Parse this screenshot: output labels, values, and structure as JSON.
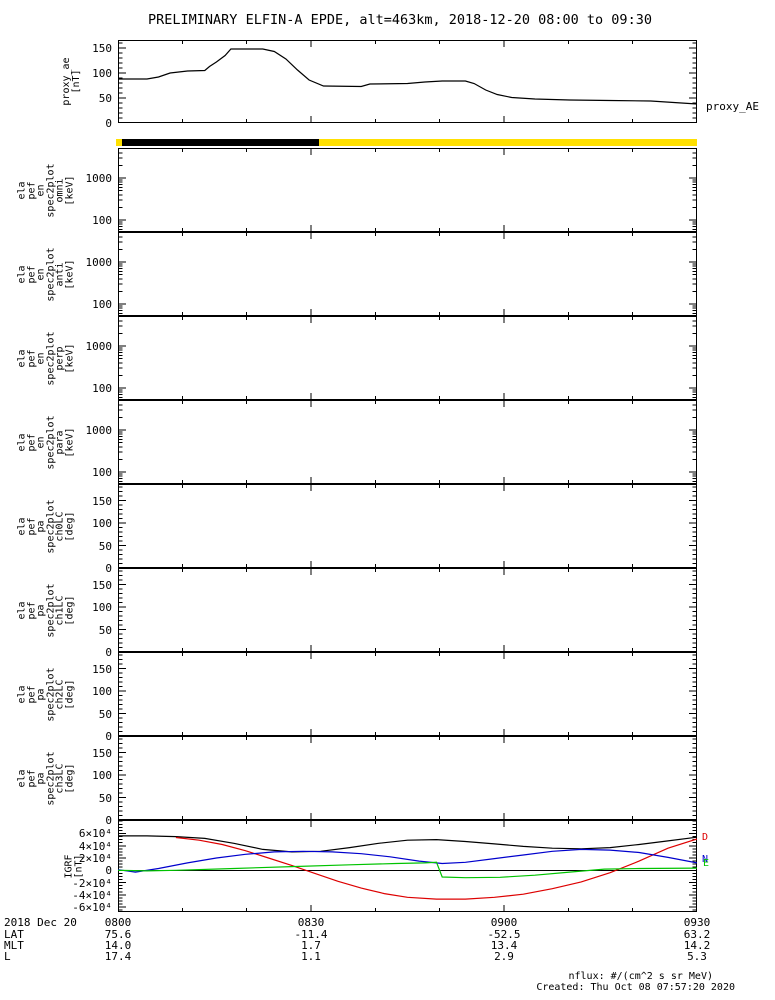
{
  "title": "PRELIMINARY ELFIN-A EPDE, alt=463km, 2018-12-20 08:00 to 09:30",
  "footer": {
    "units": "nflux: #/(cm^2 s sr MeV)",
    "created": "Created: Thu Oct 08 07:57:20 2020"
  },
  "colors": {
    "black": "#000000",
    "red": "#dd0000",
    "green": "#00c300",
    "blue": "#0000cd",
    "yellow": "#ffe000"
  },
  "time_axis": {
    "date_label": "2018 Dec 20",
    "ticks": [
      "0800",
      "0830",
      "0900",
      "0930"
    ],
    "rows": [
      {
        "label": "LAT",
        "values": [
          "75.6",
          "-11.4",
          "-52.5",
          "63.2"
        ]
      },
      {
        "label": "MLT",
        "values": [
          "14.0",
          "1.7",
          "13.4",
          "14.2"
        ]
      },
      {
        "label": "L",
        "values": [
          "17.4",
          "1.1",
          "2.9",
          "5.3"
        ]
      }
    ]
  },
  "chart_data": [
    {
      "id": "proxy_ae",
      "type": "line",
      "ylabel_lines": [
        "proxy_ae",
        "[nT]"
      ],
      "right_label": "proxy_AE",
      "yscale": "linear",
      "ylim": [
        0,
        166
      ],
      "yminor": 10,
      "yticks": [
        {
          "v": 0,
          "label": "0"
        },
        {
          "v": 50,
          "label": "50"
        },
        {
          "v": 100,
          "label": "100"
        },
        {
          "v": 150,
          "label": "150"
        }
      ],
      "series": [
        {
          "name": "proxy_AE",
          "color": "#000000",
          "x": [
            0.0,
            0.05,
            0.07,
            0.09,
            0.12,
            0.15,
            0.158,
            0.17,
            0.185,
            0.195,
            0.25,
            0.27,
            0.29,
            0.31,
            0.33,
            0.355,
            0.42,
            0.435,
            0.5,
            0.53,
            0.56,
            0.6,
            0.615,
            0.635,
            0.655,
            0.68,
            0.72,
            0.78,
            0.85,
            0.92,
            0.96,
            1.0
          ],
          "y": [
            88,
            88,
            92,
            100,
            104,
            105,
            113,
            122,
            135,
            148,
            148,
            143,
            128,
            106,
            86,
            74,
            73,
            78,
            79,
            82,
            84,
            84,
            79,
            66,
            57,
            51,
            48,
            46,
            45,
            44,
            41,
            38
          ]
        }
      ]
    },
    {
      "id": "flag_bar",
      "type": "strip",
      "segments": [
        {
          "from": 0.0,
          "to": 0.01,
          "color": "#ffe000"
        },
        {
          "from": 0.01,
          "to": 0.35,
          "color": "#000000"
        },
        {
          "from": 0.35,
          "to": 1.0,
          "color": "#ffe000"
        }
      ]
    },
    {
      "id": "en_omni",
      "type": "spec",
      "ylabel_lines": [
        "ela",
        "pef",
        "en",
        "spec2plot",
        "omni",
        "[keV]"
      ],
      "yscale": "log",
      "ylim": [
        52,
        5200
      ],
      "yticks": [
        {
          "v": 100,
          "label": "100"
        },
        {
          "v": 1000,
          "label": "1000"
        }
      ],
      "series": []
    },
    {
      "id": "en_anti",
      "type": "spec",
      "ylabel_lines": [
        "ela",
        "pef",
        "en",
        "spec2plot",
        "anti",
        "[keV]"
      ],
      "yscale": "log",
      "ylim": [
        52,
        5200
      ],
      "yticks": [
        {
          "v": 100,
          "label": "100"
        },
        {
          "v": 1000,
          "label": "1000"
        }
      ],
      "series": []
    },
    {
      "id": "en_perp",
      "type": "spec",
      "ylabel_lines": [
        "ela",
        "pef",
        "en",
        "spec2plot",
        "perp",
        "[keV]"
      ],
      "yscale": "log",
      "ylim": [
        52,
        5200
      ],
      "yticks": [
        {
          "v": 100,
          "label": "100"
        },
        {
          "v": 1000,
          "label": "1000"
        }
      ],
      "series": []
    },
    {
      "id": "en_para",
      "type": "spec",
      "ylabel_lines": [
        "ela",
        "pef",
        "en",
        "spec2plot",
        "para",
        "[keV]"
      ],
      "yscale": "log",
      "ylim": [
        52,
        5200
      ],
      "yticks": [
        {
          "v": 100,
          "label": "100"
        },
        {
          "v": 1000,
          "label": "1000"
        }
      ],
      "series": []
    },
    {
      "id": "pa_ch0",
      "type": "spec",
      "ylabel_lines": [
        "ela",
        "pef",
        "pa",
        "spec2plot",
        "ch0LC",
        "[deg]"
      ],
      "yscale": "linear",
      "ylim": [
        0,
        187
      ],
      "yminor": 10,
      "yticks": [
        {
          "v": 0,
          "label": "0"
        },
        {
          "v": 50,
          "label": "50"
        },
        {
          "v": 100,
          "label": "100"
        },
        {
          "v": 150,
          "label": "150"
        }
      ],
      "series": []
    },
    {
      "id": "pa_ch1",
      "type": "spec",
      "ylabel_lines": [
        "ela",
        "pef",
        "pa",
        "spec2plot",
        "ch1LC",
        "[deg]"
      ],
      "yscale": "linear",
      "ylim": [
        0,
        187
      ],
      "yminor": 10,
      "yticks": [
        {
          "v": 0,
          "label": "0"
        },
        {
          "v": 50,
          "label": "50"
        },
        {
          "v": 100,
          "label": "100"
        },
        {
          "v": 150,
          "label": "150"
        }
      ],
      "series": []
    },
    {
      "id": "pa_ch2",
      "type": "spec",
      "ylabel_lines": [
        "ela",
        "pef",
        "pa",
        "spec2plot",
        "ch2LC",
        "[deg]"
      ],
      "yscale": "linear",
      "ylim": [
        0,
        187
      ],
      "yminor": 10,
      "yticks": [
        {
          "v": 0,
          "label": "0"
        },
        {
          "v": 50,
          "label": "50"
        },
        {
          "v": 100,
          "label": "100"
        },
        {
          "v": 150,
          "label": "150"
        }
      ],
      "series": []
    },
    {
      "id": "pa_ch3",
      "type": "spec",
      "ylabel_lines": [
        "ela",
        "pef",
        "pa",
        "spec2plot",
        "ch3LC",
        "[deg]"
      ],
      "yscale": "linear",
      "ylim": [
        0,
        187
      ],
      "yminor": 10,
      "yticks": [
        {
          "v": 0,
          "label": "0"
        },
        {
          "v": 50,
          "label": "50"
        },
        {
          "v": 100,
          "label": "100"
        },
        {
          "v": 150,
          "label": "150"
        }
      ],
      "series": []
    },
    {
      "id": "igrf",
      "type": "line",
      "ylabel_lines": [
        "IGRF",
        "[nT]"
      ],
      "yscale": "linear",
      "ylim": [
        -68000,
        82000
      ],
      "yminor": 5000,
      "zeroline": true,
      "yticks": [
        {
          "v": 60000,
          "label": "6×10⁴"
        },
        {
          "v": 40000,
          "label": "4×10⁴"
        },
        {
          "v": 20000,
          "label": "2×10⁴"
        },
        {
          "v": 0,
          "label": "0"
        },
        {
          "v": -20000,
          "label": "-2×10⁴"
        },
        {
          "v": -40000,
          "label": "-4×10⁴"
        },
        {
          "v": -60000,
          "label": "-6×10⁴"
        }
      ],
      "right_letter_labels": [
        {
          "text": "D",
          "color": "#dd0000",
          "v": 52000
        },
        {
          "text": "N",
          "color": "#0000cd",
          "v": 16000
        },
        {
          "text": "E",
          "color": "#00c300",
          "v": 11000
        }
      ],
      "series": [
        {
          "name": "igrf_magnitude",
          "color": "#000000",
          "x": [
            0.0,
            0.05,
            0.1,
            0.15,
            0.2,
            0.25,
            0.3,
            0.35,
            0.4,
            0.45,
            0.5,
            0.55,
            0.6,
            0.65,
            0.7,
            0.75,
            0.8,
            0.85,
            0.9,
            0.95,
            1.0
          ],
          "y": [
            56000,
            56000,
            55000,
            52000,
            44000,
            34000,
            30000,
            31000,
            37000,
            44000,
            49000,
            50000,
            47000,
            43000,
            39000,
            36000,
            35000,
            37000,
            42000,
            48000,
            54000
          ]
        },
        {
          "name": "igrf_D",
          "color": "#dd0000",
          "x": [
            0.1,
            0.14,
            0.18,
            0.22,
            0.26,
            0.3,
            0.34,
            0.38,
            0.42,
            0.46,
            0.5,
            0.55,
            0.6,
            0.65,
            0.7,
            0.75,
            0.8,
            0.85,
            0.9,
            0.95,
            1.0
          ],
          "y": [
            53500,
            49000,
            42000,
            32000,
            20000,
            8000,
            -5000,
            -18000,
            -29000,
            -38000,
            -44000,
            -47000,
            -47000,
            -44000,
            -39000,
            -30000,
            -19000,
            -4000,
            15000,
            36000,
            51000
          ]
        },
        {
          "name": "igrf_N",
          "color": "#0000cd",
          "x": [
            0.0,
            0.03,
            0.07,
            0.12,
            0.17,
            0.22,
            0.27,
            0.32,
            0.37,
            0.42,
            0.47,
            0.52,
            0.56,
            0.6,
            0.65,
            0.7,
            0.75,
            0.8,
            0.85,
            0.9,
            0.95,
            1.0
          ],
          "y": [
            1000,
            -3000,
            3000,
            12000,
            20000,
            26000,
            30000,
            31000,
            30000,
            27000,
            22000,
            15000,
            11000,
            13000,
            19000,
            25000,
            31000,
            34000,
            33000,
            29000,
            21000,
            12000
          ]
        },
        {
          "name": "igrf_E",
          "color": "#00c300",
          "x": [
            0.0,
            0.05,
            0.1,
            0.2,
            0.3,
            0.4,
            0.48,
            0.53,
            0.55,
            0.56,
            0.6,
            0.66,
            0.72,
            0.78,
            0.84,
            0.9,
            1.0
          ],
          "y": [
            0,
            -1000,
            0,
            3000,
            6000,
            9000,
            11000,
            12000,
            13000,
            -11000,
            -12000,
            -11500,
            -8000,
            -3000,
            2000,
            3000,
            3500
          ]
        }
      ]
    }
  ]
}
